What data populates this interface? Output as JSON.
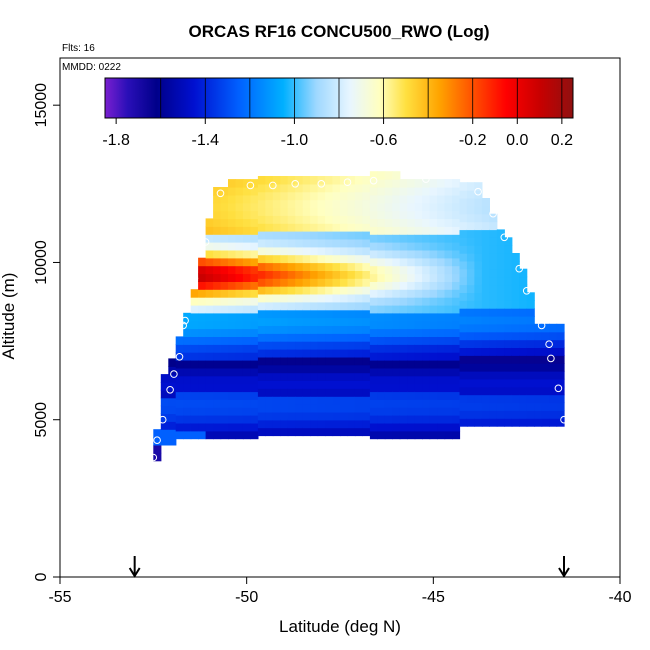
{
  "chart_data": {
    "type": "heatmap",
    "title": "ORCAS RF16 CONCU500_RWO (Log)",
    "annotations": {
      "flights": "Flts: 16",
      "date": "MMDD: 0222"
    },
    "xlabel": "Latitude (deg N)",
    "ylabel": "Altitude (m)",
    "xlim": [
      -55,
      -40
    ],
    "ylim": [
      0,
      16500
    ],
    "xticks": [
      {
        "value": -55,
        "label": "-55"
      },
      {
        "value": -50,
        "label": "-50"
      },
      {
        "value": -45,
        "label": "-45"
      },
      {
        "value": -40,
        "label": "-40"
      }
    ],
    "yticks": [
      {
        "value": 0,
        "label": "0"
      },
      {
        "value": 5000,
        "label": "5000"
      },
      {
        "value": 10000,
        "label": "10000"
      },
      {
        "value": 15000,
        "label": "15000"
      }
    ],
    "colorbar": {
      "range": [
        -1.85,
        0.25
      ],
      "ticks": [
        {
          "value": -1.8,
          "label": "-1.8"
        },
        {
          "value": -1.4,
          "label": "-1.4"
        },
        {
          "value": -1.0,
          "label": "-1.0"
        },
        {
          "value": -0.6,
          "label": "-0.6"
        },
        {
          "value": -0.2,
          "label": "-0.2"
        },
        {
          "value": 0.0,
          "label": "0.0"
        },
        {
          "value": 0.2,
          "label": "0.2"
        }
      ],
      "dividers": [
        -1.6,
        -1.4,
        -1.2,
        -1.0,
        -0.8,
        -0.6,
        -0.4,
        -0.2,
        0.0,
        0.2
      ],
      "colors": [
        {
          "v": -1.85,
          "c": "#7a1fd0"
        },
        {
          "v": -1.75,
          "c": "#2a0fb8"
        },
        {
          "v": -1.62,
          "c": "#00008a"
        },
        {
          "v": -1.45,
          "c": "#0010d0"
        },
        {
          "v": -1.25,
          "c": "#0060ff"
        },
        {
          "v": -1.05,
          "c": "#00b0ff"
        },
        {
          "v": -0.9,
          "c": "#9fd8ff"
        },
        {
          "v": -0.75,
          "c": "#e8f6ff"
        },
        {
          "v": -0.62,
          "c": "#ffffc0"
        },
        {
          "v": -0.5,
          "c": "#ffe040"
        },
        {
          "v": -0.35,
          "c": "#ffa400"
        },
        {
          "v": -0.2,
          "c": "#ff5000"
        },
        {
          "v": -0.05,
          "c": "#ff0000"
        },
        {
          "v": 0.1,
          "c": "#c80000"
        },
        {
          "v": 0.25,
          "c": "#901010"
        }
      ]
    },
    "profiles": [
      {
        "lat": -52.4,
        "alt": 3800,
        "top": 4500,
        "row": 3000
      },
      {
        "lat": -52.2,
        "alt": 4400,
        "top": 6200,
        "row": 3100
      },
      {
        "lat": -51.9,
        "alt": 5000,
        "top": 7200,
        "row": 3300
      },
      {
        "lat": -51.6,
        "alt": 6200,
        "top": 8200,
        "row": 3500
      },
      {
        "lat": -51.3,
        "alt": 8000,
        "top": 9600,
        "row": 3800
      },
      {
        "lat": -50.8,
        "alt": 10600,
        "top": 12300,
        "row": 4200
      },
      {
        "lat": -50.1,
        "alt": 12300,
        "top": 12600,
        "row": 4400
      },
      {
        "lat": -48.7,
        "alt": 12600,
        "top": 12700,
        "row": 4700
      },
      {
        "lat": -46.6,
        "alt": 12700,
        "top": 12700,
        "row": 4800
      },
      {
        "lat": -43.8,
        "alt": 11600,
        "top": 12500,
        "row": 4900
      },
      {
        "lat": -43.2,
        "alt": 10000,
        "top": 11000,
        "row": 4800
      },
      {
        "lat": -42.6,
        "alt": 8000,
        "top": 9800,
        "row": 4700
      },
      {
        "lat": -42.2,
        "alt": 6000,
        "top": 8000,
        "row": 4700
      }
    ],
    "flight_points": [
      {
        "lat": -52.5,
        "alt": 3800
      },
      {
        "lat": -52.4,
        "alt": 4350
      },
      {
        "lat": -52.25,
        "alt": 5000
      },
      {
        "lat": -52.05,
        "alt": 5950
      },
      {
        "lat": -51.95,
        "alt": 6450
      },
      {
        "lat": -51.8,
        "alt": 7000
      },
      {
        "lat": -51.7,
        "alt": 8000
      },
      {
        "lat": -51.65,
        "alt": 8150
      },
      {
        "lat": -51.4,
        "alt": 9500
      },
      {
        "lat": -51.1,
        "alt": 10650
      },
      {
        "lat": -50.7,
        "alt": 12200
      },
      {
        "lat": -49.9,
        "alt": 12450
      },
      {
        "lat": -49.3,
        "alt": 12450
      },
      {
        "lat": -48.7,
        "alt": 12500
      },
      {
        "lat": -48.0,
        "alt": 12500
      },
      {
        "lat": -47.3,
        "alt": 12550
      },
      {
        "lat": -46.6,
        "alt": 12600
      },
      {
        "lat": -45.2,
        "alt": 12650
      },
      {
        "lat": -43.8,
        "alt": 12250
      },
      {
        "lat": -43.4,
        "alt": 11550
      },
      {
        "lat": -43.1,
        "alt": 10800
      },
      {
        "lat": -42.7,
        "alt": 9800
      },
      {
        "lat": -42.5,
        "alt": 9100
      },
      {
        "lat": -42.1,
        "alt": 8000
      },
      {
        "lat": -41.9,
        "alt": 7400
      },
      {
        "lat": -41.85,
        "alt": 6950
      },
      {
        "lat": -41.65,
        "alt": 6000
      },
      {
        "lat": -41.5,
        "alt": 5000
      }
    ],
    "arrows": [
      -53.0,
      -41.5
    ]
  }
}
